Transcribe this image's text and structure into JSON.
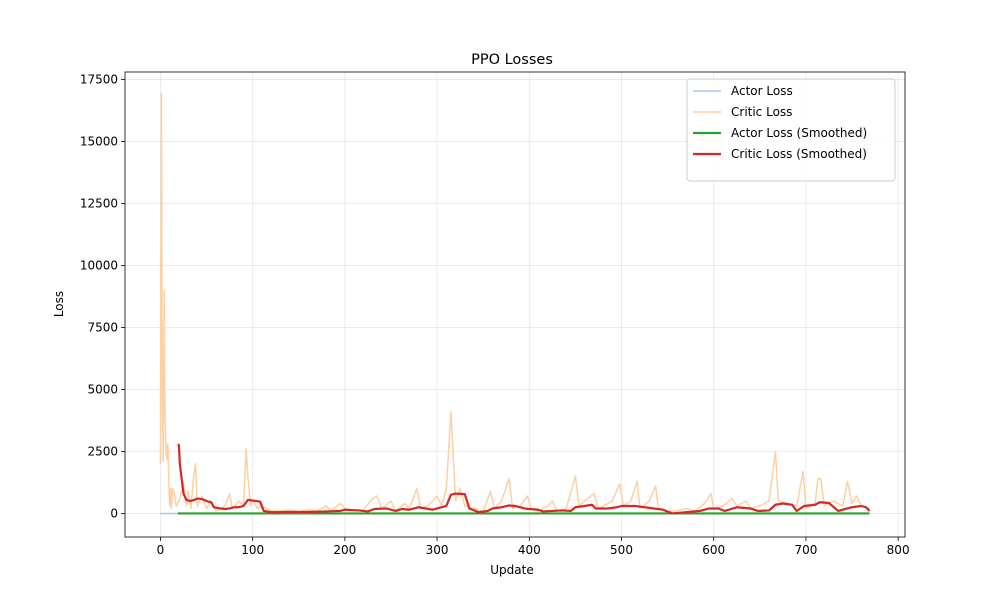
{
  "chart_data": {
    "type": "line",
    "title": "PPO Losses",
    "xlabel": "Update",
    "ylabel": "Loss",
    "xlim": [
      -38.45,
      807.45
    ],
    "ylim": [
      -950,
      17800
    ],
    "xticks": [
      0,
      100,
      200,
      300,
      400,
      500,
      600,
      700,
      800
    ],
    "yticks": [
      0,
      2500,
      5000,
      7500,
      10000,
      12500,
      15000,
      17500
    ],
    "grid": true,
    "legend": "upper right",
    "series": [
      {
        "name": "Actor Loss",
        "color": "#aec7e8",
        "width": 1.5,
        "x": [
          0,
          200,
          400,
          600,
          769
        ],
        "values": [
          0,
          0,
          0,
          0,
          0
        ]
      },
      {
        "name": "Critic Loss",
        "color": "#fdd0a2",
        "width": 1.5,
        "x": [
          0,
          1,
          2,
          3,
          4,
          5,
          6,
          7,
          8,
          9,
          10,
          11,
          12,
          13,
          15,
          17,
          20,
          25,
          28,
          30,
          33,
          36,
          38,
          40,
          45,
          50,
          55,
          60,
          70,
          75,
          78,
          85,
          90,
          93,
          95,
          98,
          100,
          105,
          110,
          120,
          130,
          140,
          150,
          160,
          170,
          180,
          185,
          195,
          200,
          210,
          220,
          230,
          235,
          240,
          250,
          255,
          265,
          270,
          278,
          282,
          290,
          300,
          305,
          310,
          315,
          318,
          320,
          325,
          330,
          340,
          350,
          358,
          362,
          370,
          378,
          382,
          390,
          398,
          402,
          410,
          420,
          425,
          430,
          440,
          450,
          454,
          460,
          470,
          475,
          480,
          490,
          498,
          502,
          510,
          517,
          520,
          530,
          537,
          540,
          550,
          560,
          570,
          580,
          590,
          597,
          600,
          610,
          620,
          625,
          635,
          640,
          650,
          660,
          667,
          670,
          680,
          690,
          697,
          700,
          710,
          713,
          716,
          720,
          730,
          740,
          745,
          750,
          755,
          760,
          769
        ],
        "values": [
          2000,
          16950,
          5000,
          2100,
          9000,
          4000,
          2500,
          2200,
          2800,
          1500,
          300,
          1000,
          200,
          1000,
          800,
          300,
          500,
          1200,
          300,
          900,
          200,
          1500,
          2000,
          300,
          700,
          200,
          500,
          100,
          300,
          800,
          200,
          500,
          300,
          2600,
          1400,
          300,
          600,
          200,
          300,
          100,
          100,
          150,
          80,
          150,
          100,
          300,
          100,
          400,
          200,
          100,
          150,
          600,
          700,
          200,
          500,
          100,
          400,
          200,
          1000,
          200,
          300,
          700,
          300,
          1000,
          4100,
          2000,
          500,
          1000,
          300,
          200,
          100,
          900,
          200,
          500,
          1400,
          200,
          300,
          700,
          200,
          100,
          300,
          500,
          100,
          200,
          1500,
          300,
          500,
          800,
          200,
          300,
          500,
          1200,
          300,
          500,
          1300,
          200,
          500,
          1100,
          200,
          100,
          100,
          200,
          100,
          400,
          800,
          200,
          300,
          600,
          300,
          500,
          200,
          300,
          500,
          2500,
          500,
          400,
          300,
          1700,
          200,
          400,
          1400,
          1400,
          300,
          500,
          300,
          1300,
          400,
          700,
          300,
          200
        ]
      },
      {
        "name": "Actor Loss (Smoothed)",
        "color": "#2ca02c",
        "width": 2.2,
        "x": [
          19,
          769
        ],
        "values": [
          0,
          0
        ]
      },
      {
        "name": "Critic Loss (Smoothed)",
        "color": "#d62728",
        "width": 2.2,
        "x": [
          19,
          20,
          21,
          23,
          25,
          28,
          32,
          37,
          40,
          45,
          50,
          55,
          58,
          65,
          70,
          75,
          80,
          85,
          90,
          95,
          100,
          108,
          112,
          120,
          140,
          160,
          180,
          195,
          200,
          215,
          225,
          232,
          245,
          255,
          262,
          270,
          280,
          295,
          300,
          310,
          315,
          320,
          330,
          335,
          345,
          355,
          360,
          370,
          378,
          385,
          395,
          400,
          410,
          415,
          425,
          435,
          445,
          450,
          460,
          468,
          472,
          485,
          495,
          500,
          515,
          525,
          535,
          545,
          555,
          570,
          585,
          595,
          605,
          612,
          625,
          640,
          648,
          660,
          667,
          675,
          685,
          690,
          698,
          710,
          715,
          725,
          735,
          740,
          750,
          760,
          765,
          769
        ],
        "values": [
          2800,
          2750,
          2000,
          1400,
          800,
          550,
          500,
          550,
          600,
          580,
          500,
          450,
          250,
          200,
          180,
          200,
          250,
          250,
          300,
          550,
          520,
          480,
          100,
          50,
          60,
          60,
          80,
          100,
          150,
          120,
          80,
          180,
          200,
          100,
          180,
          150,
          250,
          150,
          200,
          300,
          750,
          800,
          780,
          200,
          50,
          100,
          200,
          250,
          320,
          300,
          200,
          180,
          150,
          80,
          100,
          120,
          100,
          250,
          300,
          350,
          200,
          200,
          250,
          300,
          300,
          250,
          200,
          150,
          0,
          50,
          100,
          200,
          200,
          100,
          250,
          200,
          100,
          120,
          350,
          400,
          350,
          100,
          300,
          350,
          450,
          420,
          100,
          150,
          250,
          300,
          250,
          100
        ]
      }
    ]
  }
}
